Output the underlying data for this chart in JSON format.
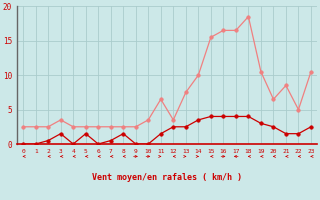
{
  "x": [
    0,
    1,
    2,
    3,
    4,
    5,
    6,
    7,
    8,
    9,
    10,
    11,
    12,
    13,
    14,
    15,
    16,
    17,
    18,
    19,
    20,
    21,
    22,
    23
  ],
  "y_rafales": [
    2.5,
    2.5,
    2.5,
    3.5,
    2.5,
    2.5,
    2.5,
    2.5,
    2.5,
    2.5,
    3.5,
    6.5,
    3.5,
    7.5,
    10.0,
    15.5,
    16.5,
    16.5,
    18.5,
    10.5,
    6.5,
    8.5,
    5.0,
    10.5
  ],
  "y_moyen": [
    0.0,
    0.0,
    0.5,
    1.5,
    0.0,
    1.5,
    0.0,
    0.5,
    1.5,
    0.0,
    0.0,
    1.5,
    2.5,
    2.5,
    3.5,
    4.0,
    4.0,
    4.0,
    4.0,
    3.0,
    2.5,
    1.5,
    1.5,
    2.5
  ],
  "color_rafales": "#f08080",
  "color_moyen": "#cc0000",
  "bg_color": "#cce8e8",
  "grid_color": "#aacccc",
  "xlabel": "Vent moyen/en rafales ( km/h )",
  "xlabel_color": "#cc0000",
  "tick_color": "#cc0000",
  "spine_color": "#666666",
  "ylim": [
    0,
    20
  ],
  "yticks": [
    0,
    5,
    10,
    15,
    20
  ],
  "xlim": [
    -0.5,
    23.5
  ],
  "wind_dirs": [
    225,
    180,
    225,
    225,
    225,
    225,
    225,
    225,
    225,
    90,
    90,
    135,
    315,
    45,
    45,
    315,
    90,
    270,
    225,
    225,
    225,
    225,
    225,
    225
  ]
}
